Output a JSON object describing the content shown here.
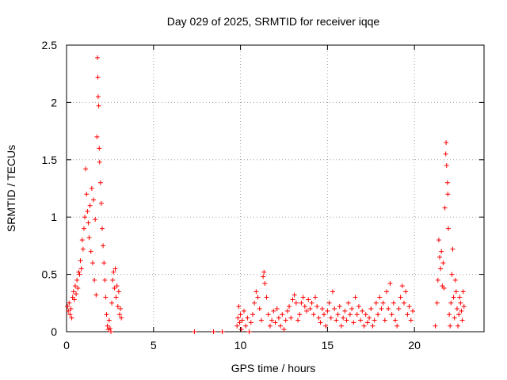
{
  "colors": {
    "series": "#ff0000",
    "axis": "#000000",
    "grid": "#a0a0a0"
  },
  "chart_data": {
    "type": "scatter",
    "title": "Day 029 of 2025, SRMTID for receiver iqqe",
    "xlabel": "GPS time / hours",
    "ylabel": "SRMTID / TECUs",
    "xlim": [
      0,
      24
    ],
    "ylim": [
      0,
      2.5
    ],
    "xticks": [
      0,
      5,
      10,
      15,
      20
    ],
    "yticks": [
      0,
      0.5,
      1,
      1.5,
      2,
      2.5
    ],
    "xtick_labels": [
      "0",
      "5",
      "10",
      "15",
      "20"
    ],
    "ytick_labels": [
      "0",
      "0.5",
      "1",
      "1.5",
      "2",
      "2.5"
    ],
    "grid": true,
    "series": [
      {
        "name": "SRMTID",
        "marker": "+",
        "points": [
          [
            0.05,
            0.22
          ],
          [
            0.1,
            0.18
          ],
          [
            0.15,
            0.25
          ],
          [
            0.2,
            0.15
          ],
          [
            0.25,
            0.2
          ],
          [
            0.3,
            0.12
          ],
          [
            0.35,
            0.3
          ],
          [
            0.4,
            0.35
          ],
          [
            0.45,
            0.28
          ],
          [
            0.5,
            0.4
          ],
          [
            0.55,
            0.33
          ],
          [
            0.6,
            0.45
          ],
          [
            0.65,
            0.38
          ],
          [
            0.7,
            0.52
          ],
          [
            0.75,
            0.5
          ],
          [
            0.8,
            0.62
          ],
          [
            0.85,
            0.55
          ],
          [
            0.9,
            0.8
          ],
          [
            0.95,
            0.72
          ],
          [
            1.0,
            0.9
          ],
          [
            1.05,
            1.0
          ],
          [
            1.1,
            1.42
          ],
          [
            1.15,
            1.2
          ],
          [
            1.2,
            1.05
          ],
          [
            1.25,
            0.95
          ],
          [
            1.3,
            0.82
          ],
          [
            1.35,
            1.1
          ],
          [
            1.4,
            0.7
          ],
          [
            1.45,
            1.25
          ],
          [
            1.5,
            0.6
          ],
          [
            1.55,
            1.15
          ],
          [
            1.6,
            0.45
          ],
          [
            1.65,
            0.98
          ],
          [
            1.7,
            0.32
          ],
          [
            1.75,
            1.7
          ],
          [
            1.78,
            2.39
          ],
          [
            1.8,
            2.22
          ],
          [
            1.82,
            2.05
          ],
          [
            1.85,
            1.97
          ],
          [
            1.88,
            1.6
          ],
          [
            1.9,
            1.48
          ],
          [
            1.95,
            1.3
          ],
          [
            2.0,
            1.12
          ],
          [
            2.05,
            0.9
          ],
          [
            2.1,
            0.75
          ],
          [
            2.15,
            0.6
          ],
          [
            2.2,
            0.45
          ],
          [
            2.25,
            0.3
          ],
          [
            2.3,
            0.15
          ],
          [
            2.35,
            0.05
          ],
          [
            2.4,
            0.02
          ],
          [
            2.45,
            0.1
          ],
          [
            2.5,
            0.03
          ],
          [
            2.55,
            0.0
          ],
          [
            2.6,
            0.25
          ],
          [
            2.65,
            0.45
          ],
          [
            2.7,
            0.52
          ],
          [
            2.75,
            0.38
          ],
          [
            2.8,
            0.55
          ],
          [
            2.85,
            0.3
          ],
          [
            2.9,
            0.4
          ],
          [
            2.95,
            0.22
          ],
          [
            3.0,
            0.35
          ],
          [
            3.05,
            0.15
          ],
          [
            3.1,
            0.2
          ],
          [
            3.15,
            0.12
          ],
          [
            7.35,
            0.0
          ],
          [
            8.45,
            0.0
          ],
          [
            8.95,
            0.0
          ],
          [
            9.8,
            0.05
          ],
          [
            9.85,
            0.12
          ],
          [
            9.9,
            0.22
          ],
          [
            9.95,
            0.08
          ],
          [
            10.0,
            0.15
          ],
          [
            10.05,
            0.02
          ],
          [
            10.1,
            0.1
          ],
          [
            10.2,
            0.18
          ],
          [
            10.3,
            0.05
          ],
          [
            10.4,
            0.12
          ],
          [
            10.5,
            0.0
          ],
          [
            10.6,
            0.08
          ],
          [
            10.7,
            0.15
          ],
          [
            10.8,
            0.25
          ],
          [
            10.9,
            0.35
          ],
          [
            11.0,
            0.3
          ],
          [
            11.1,
            0.2
          ],
          [
            11.2,
            0.1
          ],
          [
            11.3,
            0.48
          ],
          [
            11.35,
            0.52
          ],
          [
            11.4,
            0.42
          ],
          [
            11.5,
            0.3
          ],
          [
            11.6,
            0.15
          ],
          [
            11.7,
            0.05
          ],
          [
            11.8,
            0.1
          ],
          [
            11.9,
            0.18
          ],
          [
            12.0,
            0.08
          ],
          [
            12.1,
            0.2
          ],
          [
            12.2,
            0.12
          ],
          [
            12.3,
            0.05
          ],
          [
            12.4,
            0.15
          ],
          [
            12.5,
            0.02
          ],
          [
            12.6,
            0.1
          ],
          [
            12.7,
            0.18
          ],
          [
            12.8,
            0.22
          ],
          [
            12.9,
            0.12
          ],
          [
            13.0,
            0.28
          ],
          [
            13.1,
            0.32
          ],
          [
            13.2,
            0.25
          ],
          [
            13.3,
            0.1
          ],
          [
            13.4,
            0.15
          ],
          [
            13.5,
            0.25
          ],
          [
            13.6,
            0.3
          ],
          [
            13.7,
            0.22
          ],
          [
            13.8,
            0.18
          ],
          [
            13.9,
            0.28
          ],
          [
            14.0,
            0.2
          ],
          [
            14.1,
            0.25
          ],
          [
            14.2,
            0.15
          ],
          [
            14.3,
            0.3
          ],
          [
            14.4,
            0.22
          ],
          [
            14.5,
            0.12
          ],
          [
            14.6,
            0.08
          ],
          [
            14.7,
            0.2
          ],
          [
            14.8,
            0.15
          ],
          [
            14.9,
            0.05
          ],
          [
            15.0,
            0.18
          ],
          [
            15.1,
            0.25
          ],
          [
            15.2,
            0.12
          ],
          [
            15.3,
            0.35
          ],
          [
            15.4,
            0.2
          ],
          [
            15.5,
            0.1
          ],
          [
            15.6,
            0.15
          ],
          [
            15.7,
            0.22
          ],
          [
            15.8,
            0.05
          ],
          [
            15.9,
            0.12
          ],
          [
            16.0,
            0.18
          ],
          [
            16.1,
            0.1
          ],
          [
            16.2,
            0.25
          ],
          [
            16.3,
            0.15
          ],
          [
            16.4,
            0.2
          ],
          [
            16.5,
            0.08
          ],
          [
            16.6,
            0.3
          ],
          [
            16.7,
            0.15
          ],
          [
            16.8,
            0.22
          ],
          [
            16.9,
            0.1
          ],
          [
            17.0,
            0.18
          ],
          [
            17.1,
            0.05
          ],
          [
            17.2,
            0.15
          ],
          [
            17.3,
            0.08
          ],
          [
            17.4,
            0.12
          ],
          [
            17.5,
            0.2
          ],
          [
            17.6,
            0.05
          ],
          [
            17.7,
            0.1
          ],
          [
            17.8,
            0.25
          ],
          [
            17.9,
            0.15
          ],
          [
            18.0,
            0.3
          ],
          [
            18.1,
            0.2
          ],
          [
            18.2,
            0.25
          ],
          [
            18.3,
            0.1
          ],
          [
            18.4,
            0.35
          ],
          [
            18.5,
            0.2
          ],
          [
            18.6,
            0.42
          ],
          [
            18.7,
            0.15
          ],
          [
            18.8,
            0.25
          ],
          [
            18.9,
            0.1
          ],
          [
            19.0,
            0.05
          ],
          [
            19.1,
            0.2
          ],
          [
            19.2,
            0.3
          ],
          [
            19.3,
            0.4
          ],
          [
            19.4,
            0.25
          ],
          [
            19.5,
            0.35
          ],
          [
            19.6,
            0.15
          ],
          [
            19.7,
            0.22
          ],
          [
            19.8,
            0.1
          ],
          [
            19.9,
            0.18
          ],
          [
            21.2,
            0.05
          ],
          [
            21.3,
            0.25
          ],
          [
            21.35,
            0.45
          ],
          [
            21.4,
            0.8
          ],
          [
            21.45,
            0.65
          ],
          [
            21.5,
            0.55
          ],
          [
            21.55,
            0.7
          ],
          [
            21.6,
            0.4
          ],
          [
            21.65,
            0.6
          ],
          [
            21.7,
            0.38
          ],
          [
            21.75,
            1.08
          ],
          [
            21.8,
            1.55
          ],
          [
            21.82,
            1.65
          ],
          [
            21.85,
            1.45
          ],
          [
            21.9,
            1.3
          ],
          [
            21.92,
            1.2
          ],
          [
            21.95,
            0.9
          ],
          [
            22.0,
            0.15
          ],
          [
            22.05,
            0.05
          ],
          [
            22.1,
            0.25
          ],
          [
            22.15,
            0.5
          ],
          [
            22.2,
            0.72
          ],
          [
            22.25,
            0.3
          ],
          [
            22.3,
            0.12
          ],
          [
            22.35,
            0.45
          ],
          [
            22.4,
            0.35
          ],
          [
            22.45,
            0.2
          ],
          [
            22.5,
            0.05
          ],
          [
            22.55,
            0.15
          ],
          [
            22.6,
            0.3
          ],
          [
            22.65,
            0.25
          ],
          [
            22.7,
            0.18
          ],
          [
            22.75,
            0.1
          ],
          [
            22.8,
            0.35
          ],
          [
            22.85,
            0.22
          ]
        ]
      }
    ]
  }
}
